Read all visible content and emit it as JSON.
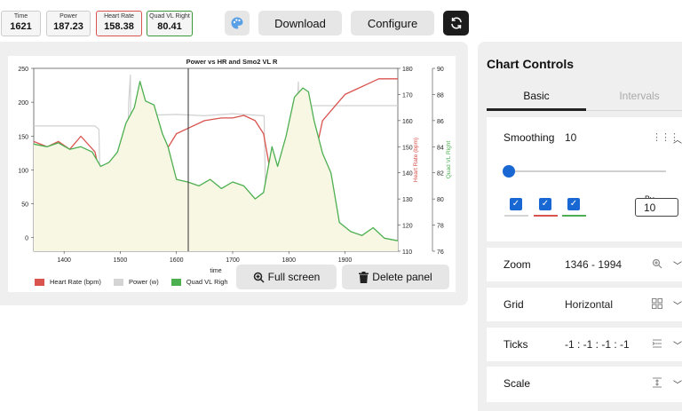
{
  "stats": [
    {
      "label": "Time",
      "value": "1621"
    },
    {
      "label": "Power",
      "value": "187.23"
    },
    {
      "label": "Heart Rate",
      "value": "158.38"
    },
    {
      "label": "Quad VL Right",
      "value": "80.41"
    }
  ],
  "toolbar": {
    "palette_icon": "palette-icon",
    "download_label": "Download",
    "configure_label": "Configure",
    "sync_icon": "sync-icon"
  },
  "chart": {
    "full_screen_label": "Full screen",
    "delete_panel_label": "Delete panel",
    "legend": [
      {
        "name": "Heart Rate (bpm)",
        "color": "#d9534f"
      },
      {
        "name": "Power (w)",
        "color": "#d4d4d4"
      },
      {
        "name": "Quad VL Righ",
        "color": "#4caf50"
      }
    ]
  },
  "chart_data": {
    "type": "line",
    "title": "Power vs HR and Smo2 VL R",
    "xlabel": "time",
    "ylabel_hr": "Heart Rate (bpm)",
    "ylabel_quad": "Quad VL Right",
    "xlim": [
      1346,
      1994
    ],
    "x_ticks": [
      1400,
      1500,
      1600,
      1700,
      1800,
      1900
    ],
    "ylim_power": [
      -20,
      250
    ],
    "y_ticks_power": [
      0,
      50,
      100,
      150,
      200,
      250
    ],
    "ylim_hr": [
      110,
      180
    ],
    "y_ticks_hr": [
      110,
      120,
      130,
      140,
      150,
      160,
      170,
      180
    ],
    "ylim_quad": [
      76,
      90
    ],
    "y_ticks_quad": [
      76,
      78,
      80,
      82,
      84,
      86,
      88,
      90
    ],
    "cursor_x": 1621,
    "series": [
      {
        "name": "Power (w)",
        "color": "#d0d0d0",
        "axis": "power",
        "x": [
          1346,
          1380,
          1420,
          1455,
          1462,
          1466,
          1510,
          1515,
          1518,
          1520,
          1524,
          1600,
          1650,
          1700,
          1756,
          1760,
          1764,
          1810,
          1814,
          1817,
          1820,
          1824,
          1900,
          1994
        ],
        "y": [
          165,
          165,
          165,
          165,
          160,
          0,
          0,
          200,
          240,
          0,
          180,
          182,
          180,
          183,
          180,
          0,
          0,
          0,
          180,
          230,
          0,
          195,
          195,
          195
        ]
      },
      {
        "name": "Heart Rate (bpm)",
        "color": "#d9534f",
        "axis": "hr",
        "x": [
          1346,
          1370,
          1390,
          1410,
          1430,
          1455,
          1465,
          1475,
          1490,
          1505,
          1515,
          1525,
          1540,
          1560,
          1580,
          1600,
          1620,
          1650,
          1680,
          1700,
          1720,
          1740,
          1755,
          1765,
          1775,
          1790,
          1805,
          1820,
          1840,
          1860,
          1880,
          1900,
          1920,
          1940,
          1960,
          1994
        ],
        "y": [
          152,
          150,
          152,
          149,
          154,
          148,
          138,
          127,
          120,
          113,
          114,
          124,
          131,
          141,
          148,
          155,
          157,
          160,
          161,
          161,
          162,
          160,
          155,
          143,
          130,
          122,
          118,
          125,
          140,
          160,
          165,
          170,
          172,
          174,
          176,
          176
        ]
      },
      {
        "name": "Quad VL Right",
        "color": "#4caf50",
        "axis": "quad",
        "x": [
          1346,
          1370,
          1390,
          1410,
          1430,
          1450,
          1465,
          1480,
          1495,
          1510,
          1525,
          1535,
          1545,
          1560,
          1575,
          1585,
          1600,
          1620,
          1640,
          1660,
          1680,
          1700,
          1720,
          1740,
          1755,
          1770,
          1780,
          1795,
          1810,
          1825,
          1835,
          1845,
          1860,
          1875,
          1890,
          1910,
          1930,
          1950,
          1970,
          1994
        ],
        "y": [
          84.2,
          84.0,
          84.3,
          83.8,
          84.0,
          83.6,
          82.5,
          82.8,
          83.6,
          85.8,
          87.0,
          89.0,
          87.5,
          87.2,
          85.0,
          84.0,
          81.5,
          81.3,
          81.0,
          81.5,
          80.8,
          81.3,
          81.0,
          80.0,
          80.5,
          84.0,
          82.5,
          84.8,
          87.8,
          88.5,
          88.2,
          86.0,
          83.5,
          82.0,
          78.2,
          77.5,
          77.2,
          77.8,
          77.0,
          76.8
        ]
      }
    ]
  },
  "controls": {
    "title": "Chart Controls",
    "tabs": [
      "Basic",
      "Intervals"
    ],
    "smoothing": {
      "label": "Smoothing",
      "value": "10",
      "by_label": "By",
      "by_value": "10",
      "slider_fraction": 0.02
    },
    "zoom": {
      "label": "Zoom",
      "value": "1346 - 1994"
    },
    "grid": {
      "label": "Grid",
      "value": "Horizontal"
    },
    "ticks": {
      "label": "Ticks",
      "value": "-1 : -1 : -1 : -1"
    },
    "scale": {
      "label": "Scale",
      "value": ""
    }
  }
}
